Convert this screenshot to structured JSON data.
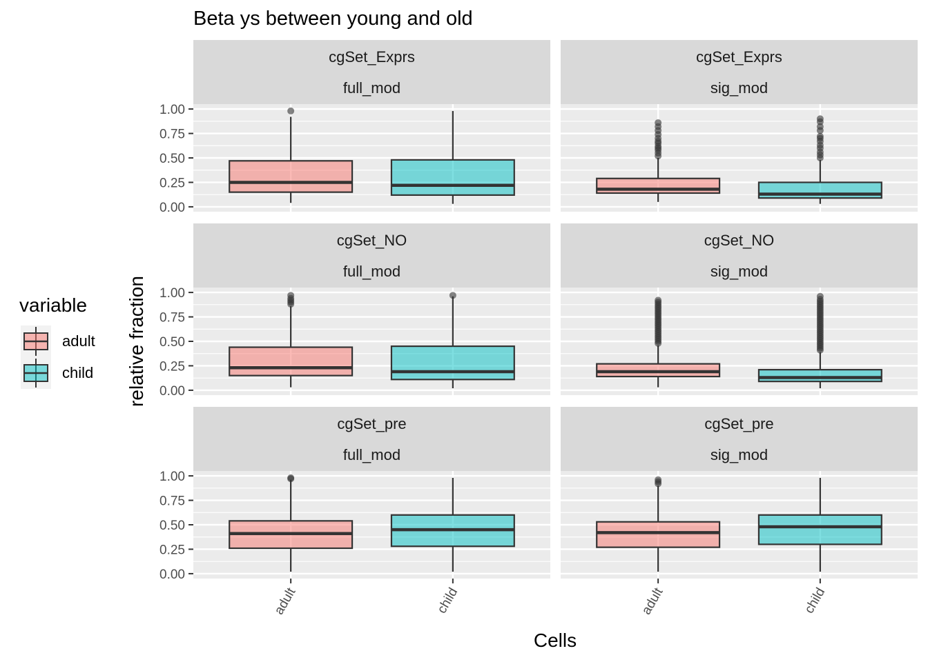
{
  "chart_data": {
    "type": "boxplot",
    "title": "Beta ys between young and old",
    "xlabel": "Cells",
    "ylabel": "relative fraction",
    "categories": [
      "adult",
      "child"
    ],
    "ylim": [
      0,
      1
    ],
    "yticks": [
      0,
      0.25,
      0.5,
      0.75,
      1.0
    ],
    "ytick_labels": [
      "0.00",
      "0.25",
      "0.50",
      "0.75",
      "1.00"
    ],
    "grid": true,
    "legend": {
      "title": "variable",
      "position": "left",
      "entries": [
        {
          "label": "adult",
          "color": "#F8766D"
        },
        {
          "label": "child",
          "color": "#00BFC4"
        }
      ]
    },
    "panels": [
      {
        "row_label": "cgSet_Exprs",
        "col_label": "full_mod",
        "boxes": [
          {
            "category": "adult",
            "min": 0.04,
            "q1": 0.15,
            "median": 0.25,
            "q3": 0.47,
            "max": 0.92,
            "outliers": [
              0.98
            ]
          },
          {
            "category": "child",
            "min": 0.03,
            "q1": 0.12,
            "median": 0.22,
            "q3": 0.48,
            "max": 0.98,
            "outliers": []
          }
        ]
      },
      {
        "row_label": "cgSet_Exprs",
        "col_label": "sig_mod",
        "boxes": [
          {
            "category": "adult",
            "min": 0.05,
            "q1": 0.14,
            "median": 0.18,
            "q3": 0.29,
            "max": 0.5,
            "outliers": [
              0.52,
              0.55,
              0.58,
              0.6,
              0.62,
              0.65,
              0.67,
              0.7,
              0.74,
              0.78,
              0.82,
              0.86
            ]
          },
          {
            "category": "child",
            "min": 0.03,
            "q1": 0.09,
            "median": 0.13,
            "q3": 0.25,
            "max": 0.48,
            "outliers": [
              0.5,
              0.53,
              0.56,
              0.6,
              0.63,
              0.67,
              0.7,
              0.72,
              0.78,
              0.82,
              0.87,
              0.9
            ]
          }
        ]
      },
      {
        "row_label": "cgSet_NO",
        "col_label": "full_mod",
        "boxes": [
          {
            "category": "adult",
            "min": 0.03,
            "q1": 0.15,
            "median": 0.23,
            "q3": 0.44,
            "max": 0.86,
            "outliers": [
              0.88,
              0.9,
              0.92,
              0.94,
              0.97
            ]
          },
          {
            "category": "child",
            "min": 0.02,
            "q1": 0.11,
            "median": 0.19,
            "q3": 0.45,
            "max": 0.96,
            "outliers": [
              0.97
            ]
          }
        ]
      },
      {
        "row_label": "cgSet_NO",
        "col_label": "sig_mod",
        "boxes": [
          {
            "category": "adult",
            "min": 0.03,
            "q1": 0.14,
            "median": 0.19,
            "q3": 0.27,
            "max": 0.46,
            "outliers": [
              0.48,
              0.5,
              0.52,
              0.54,
              0.56,
              0.58,
              0.6,
              0.62,
              0.64,
              0.66,
              0.68,
              0.7,
              0.72,
              0.74,
              0.76,
              0.78,
              0.8,
              0.82,
              0.84,
              0.86,
              0.88,
              0.9,
              0.92
            ]
          },
          {
            "category": "child",
            "min": 0.02,
            "q1": 0.09,
            "median": 0.13,
            "q3": 0.21,
            "max": 0.39,
            "outliers": [
              0.41,
              0.43,
              0.45,
              0.47,
              0.49,
              0.51,
              0.53,
              0.55,
              0.57,
              0.59,
              0.61,
              0.63,
              0.65,
              0.67,
              0.69,
              0.71,
              0.73,
              0.75,
              0.77,
              0.79,
              0.81,
              0.83,
              0.85,
              0.87,
              0.89,
              0.91,
              0.93,
              0.96
            ]
          }
        ]
      },
      {
        "row_label": "cgSet_pre",
        "col_label": "full_mod",
        "boxes": [
          {
            "category": "adult",
            "min": 0.02,
            "q1": 0.26,
            "median": 0.41,
            "q3": 0.54,
            "max": 0.96,
            "outliers": [
              0.97,
              0.98
            ]
          },
          {
            "category": "child",
            "min": 0.02,
            "q1": 0.28,
            "median": 0.45,
            "q3": 0.6,
            "max": 0.98,
            "outliers": []
          }
        ]
      },
      {
        "row_label": "cgSet_pre",
        "col_label": "sig_mod",
        "boxes": [
          {
            "category": "adult",
            "min": 0.02,
            "q1": 0.27,
            "median": 0.42,
            "q3": 0.53,
            "max": 0.9,
            "outliers": [
              0.92,
              0.94,
              0.96
            ]
          },
          {
            "category": "child",
            "min": 0.02,
            "q1": 0.3,
            "median": 0.48,
            "q3": 0.6,
            "max": 0.98,
            "outliers": []
          }
        ]
      }
    ]
  }
}
